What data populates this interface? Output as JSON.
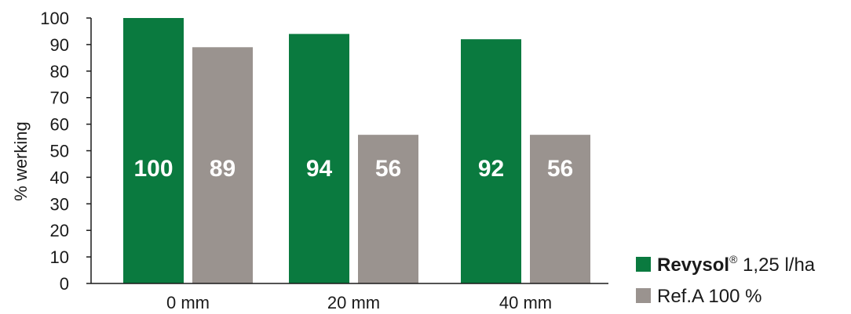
{
  "chart_data": {
    "type": "bar",
    "title": "",
    "xlabel": "",
    "ylabel": "% werking",
    "ylim": [
      0,
      100
    ],
    "yticks": [
      0,
      10,
      20,
      30,
      40,
      50,
      60,
      70,
      80,
      90,
      100
    ],
    "grid": false,
    "legend_position": "bottom-right",
    "categories": [
      "0 mm",
      "20 mm",
      "40 mm"
    ],
    "series": [
      {
        "name_bold": "Revysol",
        "name_sup": "®",
        "name_rest": " 1,25 l/ha",
        "color": "#0a7a3f",
        "values": [
          100,
          94,
          92
        ]
      },
      {
        "name_bold": "",
        "name_sup": "",
        "name_rest": "Ref.A 100 %",
        "color": "#9a938f",
        "values": [
          89,
          56,
          56
        ]
      }
    ]
  }
}
